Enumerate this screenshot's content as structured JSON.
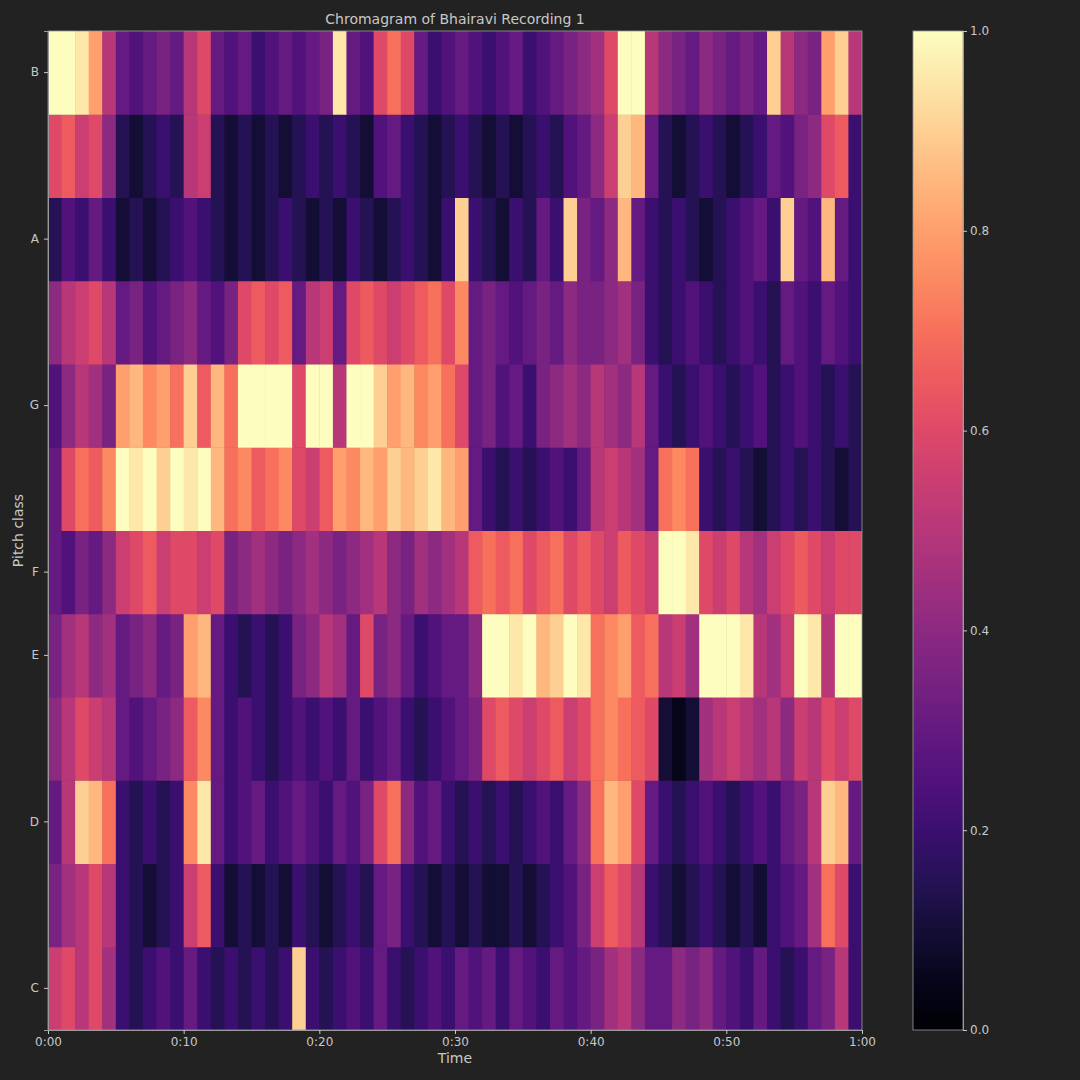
{
  "chart_data": {
    "type": "heatmap",
    "title": "Chromagram of Bhairavi Recording 1",
    "x_label": "Time",
    "y_label": "Pitch class",
    "color": "magma",
    "x": [
      0,
      1,
      2,
      3,
      4,
      5,
      6,
      7,
      8,
      9,
      10,
      11,
      12,
      13,
      14,
      15,
      16,
      17,
      18,
      19,
      20,
      21,
      22,
      23,
      24,
      25,
      26,
      27,
      28,
      29,
      30,
      31,
      32,
      33,
      34,
      35,
      36,
      37,
      38,
      39,
      40,
      41,
      42,
      43,
      44,
      45,
      46,
      47,
      48,
      49,
      50,
      51,
      52,
      53,
      54,
      55,
      56,
      57,
      58,
      59
    ],
    "xlim": [
      0,
      60
    ],
    "xticks": [
      {
        "value": 0,
        "label": "0:00"
      },
      {
        "value": 10,
        "label": "0:10"
      },
      {
        "value": 20,
        "label": "0:20"
      },
      {
        "value": 30,
        "label": "0:30"
      },
      {
        "value": 40,
        "label": "0:40"
      },
      {
        "value": 50,
        "label": "0:50"
      },
      {
        "value": 60,
        "label": "1:00"
      }
    ],
    "categories": [
      "C",
      null,
      "D",
      null,
      "E",
      "F",
      null,
      "G",
      null,
      "A",
      null,
      "B"
    ],
    "values": [
      [
        0.55,
        0.6,
        0.5,
        0.6,
        0.45,
        0.2,
        0.15,
        0.2,
        0.25,
        0.2,
        0.3,
        0.2,
        0.15,
        0.2,
        0.15,
        0.2,
        0.15,
        0.2,
        0.9,
        0.2,
        0.15,
        0.2,
        0.25,
        0.2,
        0.3,
        0.2,
        0.15,
        0.2,
        0.25,
        0.2,
        0.3,
        0.25,
        0.3,
        0.2,
        0.3,
        0.25,
        0.2,
        0.3,
        0.25,
        0.3,
        0.35,
        0.45,
        0.5,
        0.4,
        0.3,
        0.3,
        0.4,
        0.35,
        0.4,
        0.3,
        0.25,
        0.2,
        0.3,
        0.2,
        0.15,
        0.2,
        0.3,
        0.35,
        0.5,
        0.2
      ],
      [
        0.35,
        0.45,
        0.5,
        0.6,
        0.5,
        0.2,
        0.15,
        0.1,
        0.15,
        0.2,
        0.55,
        0.65,
        0.2,
        0.1,
        0.15,
        0.1,
        0.15,
        0.1,
        0.2,
        0.15,
        0.1,
        0.15,
        0.2,
        0.15,
        0.3,
        0.35,
        0.2,
        0.15,
        0.1,
        0.15,
        0.1,
        0.15,
        0.1,
        0.1,
        0.15,
        0.1,
        0.15,
        0.2,
        0.25,
        0.35,
        0.55,
        0.65,
        0.6,
        0.5,
        0.2,
        0.15,
        0.1,
        0.15,
        0.2,
        0.15,
        0.1,
        0.15,
        0.1,
        0.2,
        0.25,
        0.3,
        0.45,
        0.7,
        0.6,
        0.2
      ],
      [
        0.3,
        0.5,
        0.9,
        0.85,
        0.7,
        0.2,
        0.15,
        0.2,
        0.15,
        0.2,
        0.75,
        0.95,
        0.3,
        0.2,
        0.25,
        0.3,
        0.2,
        0.25,
        0.3,
        0.25,
        0.2,
        0.3,
        0.25,
        0.35,
        0.6,
        0.7,
        0.4,
        0.25,
        0.3,
        0.2,
        0.15,
        0.2,
        0.15,
        0.2,
        0.15,
        0.2,
        0.25,
        0.2,
        0.3,
        0.4,
        0.7,
        0.85,
        0.8,
        0.6,
        0.3,
        0.2,
        0.15,
        0.2,
        0.25,
        0.2,
        0.15,
        0.2,
        0.25,
        0.2,
        0.3,
        0.35,
        0.5,
        0.9,
        0.85,
        0.3
      ],
      [
        0.4,
        0.5,
        0.6,
        0.55,
        0.5,
        0.3,
        0.25,
        0.3,
        0.35,
        0.4,
        0.65,
        0.75,
        0.3,
        0.2,
        0.25,
        0.2,
        0.15,
        0.2,
        0.25,
        0.2,
        0.25,
        0.2,
        0.3,
        0.2,
        0.25,
        0.3,
        0.2,
        0.15,
        0.2,
        0.25,
        0.3,
        0.35,
        0.6,
        0.65,
        0.6,
        0.55,
        0.6,
        0.65,
        0.55,
        0.6,
        0.7,
        0.75,
        0.7,
        0.65,
        0.6,
        0.1,
        0.05,
        0.1,
        0.45,
        0.5,
        0.55,
        0.5,
        0.45,
        0.5,
        0.4,
        0.55,
        0.5,
        0.6,
        0.55,
        0.6
      ],
      [
        0.35,
        0.45,
        0.5,
        0.4,
        0.45,
        0.3,
        0.35,
        0.4,
        0.3,
        0.35,
        0.8,
        0.85,
        0.3,
        0.2,
        0.15,
        0.2,
        0.15,
        0.2,
        0.35,
        0.4,
        0.5,
        0.45,
        0.3,
        0.6,
        0.35,
        0.4,
        0.3,
        0.2,
        0.25,
        0.3,
        0.3,
        0.4,
        1.0,
        1.0,
        0.95,
        1.0,
        0.85,
        0.9,
        1.0,
        0.95,
        0.7,
        0.75,
        0.8,
        0.65,
        0.7,
        0.5,
        0.55,
        0.45,
        1.0,
        1.0,
        1.0,
        0.95,
        0.5,
        0.45,
        0.55,
        1.0,
        0.95,
        0.5,
        1.0,
        1.0
      ],
      [
        0.3,
        0.25,
        0.35,
        0.3,
        0.4,
        0.55,
        0.6,
        0.65,
        0.55,
        0.6,
        0.6,
        0.55,
        0.6,
        0.35,
        0.4,
        0.45,
        0.4,
        0.35,
        0.4,
        0.45,
        0.4,
        0.35,
        0.4,
        0.45,
        0.5,
        0.4,
        0.35,
        0.45,
        0.4,
        0.45,
        0.5,
        0.65,
        0.7,
        0.65,
        0.7,
        0.6,
        0.65,
        0.7,
        0.6,
        0.65,
        0.6,
        0.55,
        0.65,
        0.6,
        0.55,
        1.0,
        1.0,
        0.95,
        0.6,
        0.55,
        0.6,
        0.5,
        0.45,
        0.55,
        0.6,
        0.65,
        0.6,
        0.55,
        0.6,
        0.6
      ],
      [
        0.3,
        0.6,
        0.7,
        0.65,
        0.75,
        1.0,
        0.95,
        1.0,
        0.9,
        1.0,
        0.95,
        1.0,
        0.85,
        0.7,
        0.75,
        0.65,
        0.7,
        0.75,
        0.6,
        0.55,
        0.65,
        0.8,
        0.75,
        0.85,
        0.8,
        0.9,
        0.85,
        0.9,
        0.95,
        0.85,
        0.8,
        0.3,
        0.2,
        0.15,
        0.2,
        0.15,
        0.2,
        0.25,
        0.2,
        0.3,
        0.5,
        0.55,
        0.5,
        0.45,
        0.3,
        0.7,
        0.75,
        0.7,
        0.2,
        0.15,
        0.2,
        0.15,
        0.1,
        0.15,
        0.2,
        0.15,
        0.2,
        0.15,
        0.1,
        0.15
      ],
      [
        0.25,
        0.4,
        0.5,
        0.45,
        0.35,
        0.8,
        0.85,
        0.75,
        0.8,
        0.7,
        0.9,
        0.65,
        0.85,
        0.7,
        1.0,
        1.0,
        1.0,
        1.0,
        0.6,
        1.0,
        1.0,
        0.5,
        1.0,
        1.0,
        0.9,
        0.8,
        0.85,
        0.75,
        0.8,
        0.7,
        0.6,
        0.3,
        0.35,
        0.25,
        0.3,
        0.2,
        0.35,
        0.4,
        0.45,
        0.4,
        0.5,
        0.45,
        0.4,
        0.5,
        0.3,
        0.2,
        0.15,
        0.2,
        0.25,
        0.2,
        0.15,
        0.2,
        0.25,
        0.15,
        0.2,
        0.25,
        0.2,
        0.15,
        0.2,
        0.15
      ],
      [
        0.4,
        0.5,
        0.55,
        0.6,
        0.5,
        0.3,
        0.35,
        0.25,
        0.3,
        0.35,
        0.4,
        0.3,
        0.25,
        0.35,
        0.6,
        0.65,
        0.6,
        0.65,
        0.3,
        0.5,
        0.55,
        0.3,
        0.6,
        0.65,
        0.6,
        0.55,
        0.6,
        0.65,
        0.7,
        0.6,
        0.75,
        0.3,
        0.35,
        0.3,
        0.25,
        0.3,
        0.35,
        0.3,
        0.4,
        0.35,
        0.35,
        0.4,
        0.45,
        0.35,
        0.2,
        0.15,
        0.2,
        0.25,
        0.2,
        0.15,
        0.2,
        0.25,
        0.2,
        0.15,
        0.3,
        0.25,
        0.2,
        0.3,
        0.25,
        0.2
      ],
      [
        0.15,
        0.25,
        0.2,
        0.3,
        0.2,
        0.1,
        0.15,
        0.1,
        0.15,
        0.2,
        0.25,
        0.2,
        0.15,
        0.1,
        0.15,
        0.1,
        0.15,
        0.2,
        0.15,
        0.1,
        0.15,
        0.1,
        0.2,
        0.15,
        0.1,
        0.15,
        0.2,
        0.15,
        0.1,
        0.2,
        0.9,
        0.2,
        0.15,
        0.1,
        0.2,
        0.15,
        0.3,
        0.2,
        0.9,
        0.35,
        0.3,
        0.4,
        0.85,
        0.3,
        0.2,
        0.15,
        0.2,
        0.15,
        0.1,
        0.15,
        0.2,
        0.25,
        0.3,
        0.2,
        0.9,
        0.3,
        0.25,
        0.85,
        0.3,
        0.2
      ],
      [
        0.6,
        0.65,
        0.55,
        0.6,
        0.4,
        0.15,
        0.1,
        0.15,
        0.2,
        0.15,
        0.5,
        0.55,
        0.15,
        0.1,
        0.15,
        0.1,
        0.15,
        0.1,
        0.15,
        0.2,
        0.15,
        0.2,
        0.15,
        0.1,
        0.25,
        0.3,
        0.2,
        0.15,
        0.1,
        0.15,
        0.2,
        0.15,
        0.1,
        0.15,
        0.1,
        0.15,
        0.2,
        0.15,
        0.25,
        0.3,
        0.4,
        0.55,
        0.9,
        0.85,
        0.3,
        0.15,
        0.1,
        0.15,
        0.2,
        0.15,
        0.1,
        0.15,
        0.2,
        0.3,
        0.25,
        0.35,
        0.4,
        0.6,
        0.65,
        0.2
      ],
      [
        1.0,
        1.0,
        0.95,
        0.8,
        0.5,
        0.3,
        0.25,
        0.3,
        0.35,
        0.3,
        0.5,
        0.6,
        0.3,
        0.25,
        0.3,
        0.2,
        0.25,
        0.3,
        0.25,
        0.3,
        0.35,
        0.95,
        0.3,
        0.25,
        0.6,
        0.7,
        0.6,
        0.3,
        0.2,
        0.25,
        0.3,
        0.25,
        0.2,
        0.25,
        0.3,
        0.2,
        0.25,
        0.3,
        0.35,
        0.4,
        0.45,
        0.6,
        1.0,
        1.0,
        0.5,
        0.4,
        0.35,
        0.3,
        0.4,
        0.35,
        0.3,
        0.35,
        0.3,
        0.9,
        0.5,
        0.4,
        0.35,
        0.8,
        0.9,
        0.5
      ]
    ],
    "colorbar_range": [
      0,
      1
    ],
    "colorbar_ticks": [
      {
        "value": 0,
        "label": "0.0"
      },
      0.2,
      0.4,
      0.6,
      0.8,
      {
        "value": 1,
        "label": "1.0"
      }
    ]
  }
}
